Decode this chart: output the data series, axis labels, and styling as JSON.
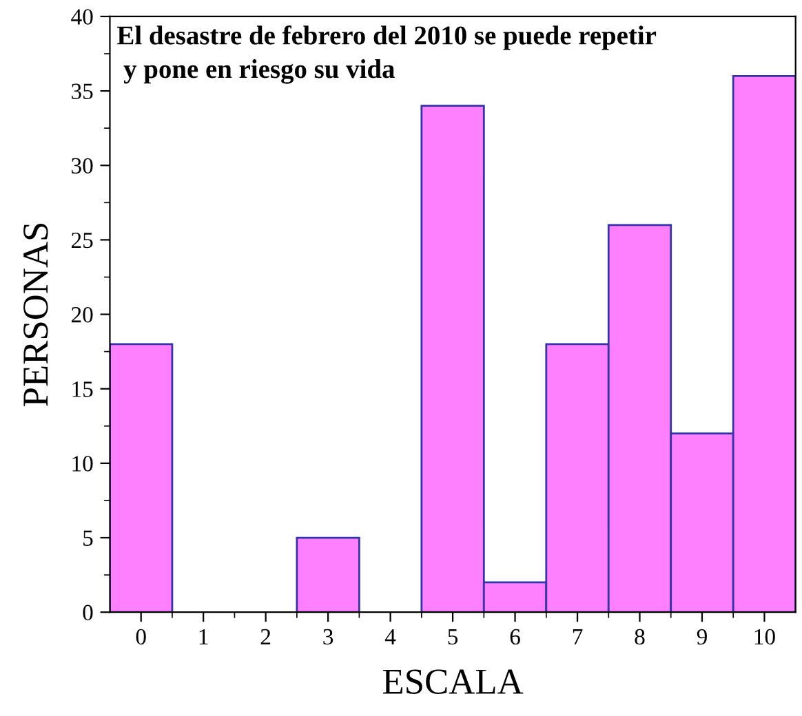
{
  "chart_data": {
    "type": "bar",
    "title": "El desastre de febrero del 2010 se puede repetir\n y pone en riesgo su vida",
    "xlabel": "ESCALA",
    "ylabel": "PERSONAS",
    "categories": [
      "0",
      "1",
      "2",
      "3",
      "4",
      "5",
      "6",
      "7",
      "8",
      "9",
      "10"
    ],
    "values": [
      18,
      0,
      0,
      5,
      0,
      34,
      2,
      18,
      26,
      12,
      36
    ],
    "color": "#ff80ff",
    "ylim": [
      0,
      40
    ],
    "yticks": [
      0,
      5,
      10,
      15,
      20,
      25,
      30,
      35,
      40
    ],
    "grid": false
  }
}
